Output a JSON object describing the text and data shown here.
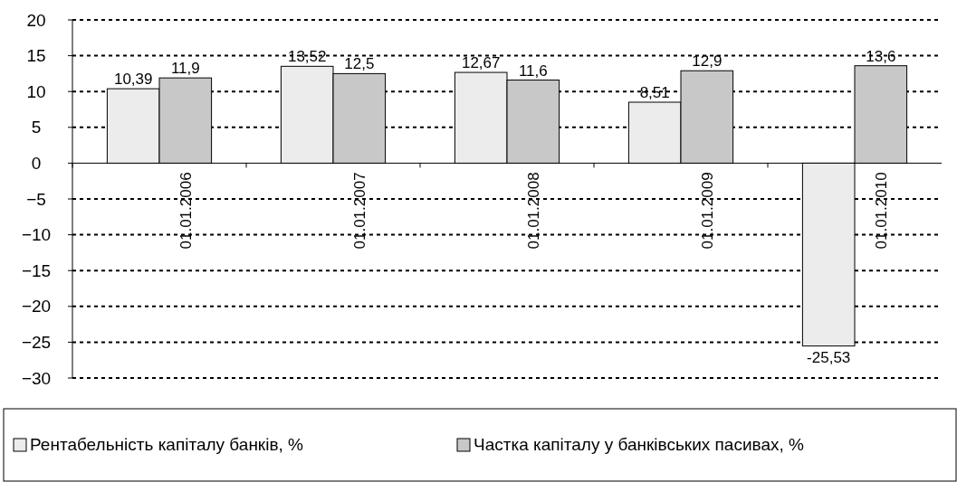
{
  "chart_data": {
    "type": "bar",
    "categories": [
      "01.01.2006",
      "01.01.2007",
      "01.01.2008",
      "01.01.2009",
      "01.01.2010"
    ],
    "series": [
      {
        "name": "Рентабельність капіталу банків, %",
        "color": "#ececec",
        "values": [
          10.39,
          13.52,
          12.67,
          8.51,
          -25.53
        ],
        "value_labels": [
          "10,39",
          "13,52",
          "12,67",
          "8,51",
          "-25,53"
        ]
      },
      {
        "name": "Частка капіталу у банківських пасивах, %",
        "color": "#c8c8c8",
        "values": [
          11.9,
          12.5,
          11.6,
          12.9,
          13.6
        ],
        "value_labels": [
          "11,9",
          "12,5",
          "11,6",
          "12,9",
          "13,6"
        ]
      }
    ],
    "ylim": [
      -30,
      20
    ],
    "yticks": [
      20,
      15,
      10,
      5,
      0,
      {
        "value": -5,
        "label": "−5"
      },
      {
        "value": -10,
        "label": "−10"
      },
      {
        "value": -15,
        "label": "−15"
      },
      {
        "value": -20,
        "label": "−20"
      },
      {
        "value": -25,
        "label": "−25"
      },
      {
        "value": -30,
        "label": "−30"
      }
    ],
    "grid": "y",
    "legend": "bottom"
  }
}
